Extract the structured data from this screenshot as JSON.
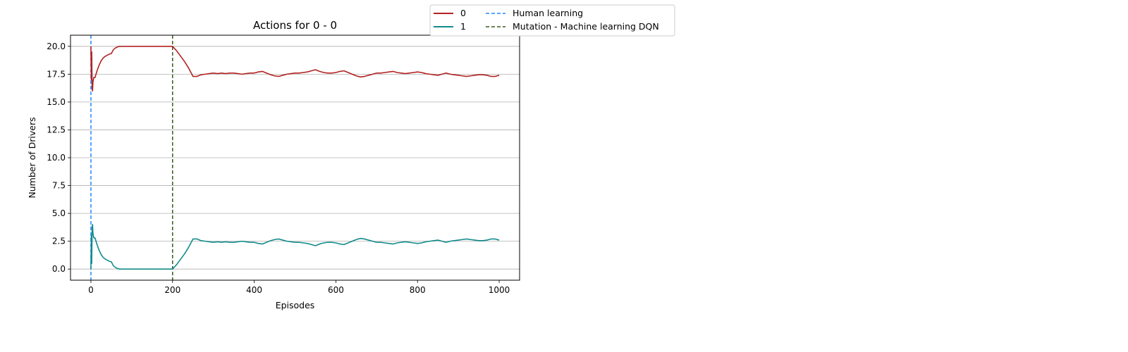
{
  "chart_data": {
    "type": "line",
    "title": "Actions for 0 - 0",
    "xlabel": "Episodes",
    "ylabel": "Number of Drivers",
    "xlim": [
      -50,
      1050
    ],
    "ylim": [
      -1,
      21
    ],
    "xticks": [
      0,
      200,
      400,
      600,
      800,
      1000
    ],
    "xtick_labels": [
      "0",
      "200",
      "400",
      "600",
      "800",
      "1000"
    ],
    "yticks": [
      0.0,
      2.5,
      5.0,
      7.5,
      10.0,
      12.5,
      15.0,
      17.5,
      20.0
    ],
    "ytick_labels": [
      "0.0",
      "2.5",
      "5.0",
      "7.5",
      "10.0",
      "12.5",
      "15.0",
      "17.5",
      "20.0"
    ],
    "grid": "horizontal",
    "legend_position": "top-right, outside plot",
    "series": [
      {
        "name": "0",
        "color": "#b22222",
        "style": "solid",
        "x": [
          0,
          1,
          2,
          3,
          4,
          5,
          7,
          10,
          15,
          20,
          25,
          30,
          35,
          40,
          45,
          50,
          55,
          60,
          65,
          70,
          80,
          100,
          150,
          200,
          210,
          220,
          230,
          240,
          250,
          260,
          270,
          280,
          290,
          300,
          310,
          320,
          330,
          340,
          350,
          360,
          370,
          380,
          390,
          400,
          410,
          420,
          430,
          440,
          450,
          460,
          470,
          480,
          490,
          500,
          510,
          520,
          530,
          540,
          550,
          560,
          570,
          580,
          590,
          600,
          610,
          620,
          630,
          640,
          650,
          660,
          670,
          680,
          690,
          700,
          710,
          720,
          730,
          740,
          750,
          760,
          770,
          780,
          790,
          800,
          810,
          820,
          830,
          840,
          850,
          860,
          870,
          880,
          890,
          900,
          910,
          920,
          930,
          940,
          950,
          960,
          970,
          980,
          990,
          1000
        ],
        "values": [
          20.0,
          17.0,
          19.5,
          16.2,
          16.0,
          16.8,
          17.2,
          17.2,
          17.8,
          18.3,
          18.7,
          18.95,
          19.1,
          19.2,
          19.3,
          19.35,
          19.7,
          19.85,
          19.95,
          20.0,
          20.0,
          20.0,
          20.0,
          20.0,
          19.6,
          19.1,
          18.6,
          18.0,
          17.3,
          17.3,
          17.45,
          17.5,
          17.55,
          17.6,
          17.55,
          17.6,
          17.55,
          17.6,
          17.6,
          17.55,
          17.5,
          17.55,
          17.6,
          17.6,
          17.7,
          17.75,
          17.6,
          17.45,
          17.35,
          17.3,
          17.4,
          17.5,
          17.55,
          17.6,
          17.6,
          17.65,
          17.7,
          17.8,
          17.9,
          17.75,
          17.65,
          17.6,
          17.6,
          17.65,
          17.75,
          17.8,
          17.65,
          17.5,
          17.35,
          17.25,
          17.3,
          17.4,
          17.5,
          17.6,
          17.6,
          17.65,
          17.7,
          17.75,
          17.65,
          17.6,
          17.55,
          17.6,
          17.65,
          17.7,
          17.65,
          17.55,
          17.5,
          17.45,
          17.4,
          17.5,
          17.6,
          17.5,
          17.45,
          17.4,
          17.35,
          17.3,
          17.35,
          17.4,
          17.45,
          17.45,
          17.4,
          17.3,
          17.3,
          17.4
        ]
      },
      {
        "name": "1",
        "color": "#138b8b",
        "style": "solid",
        "x": [
          0,
          1,
          2,
          3,
          4,
          5,
          7,
          10,
          15,
          20,
          25,
          30,
          35,
          40,
          45,
          50,
          55,
          60,
          65,
          70,
          80,
          100,
          150,
          200,
          210,
          220,
          230,
          240,
          250,
          260,
          270,
          280,
          290,
          300,
          310,
          320,
          330,
          340,
          350,
          360,
          370,
          380,
          390,
          400,
          410,
          420,
          430,
          440,
          450,
          460,
          470,
          480,
          490,
          500,
          510,
          520,
          530,
          540,
          550,
          560,
          570,
          580,
          590,
          600,
          610,
          620,
          630,
          640,
          650,
          660,
          670,
          680,
          690,
          700,
          710,
          720,
          730,
          740,
          750,
          760,
          770,
          780,
          790,
          800,
          810,
          820,
          830,
          840,
          850,
          860,
          870,
          880,
          890,
          900,
          910,
          920,
          930,
          940,
          950,
          960,
          970,
          980,
          990,
          1000
        ],
        "values": [
          0.0,
          3.0,
          0.5,
          3.8,
          4.0,
          3.2,
          2.8,
          2.8,
          2.2,
          1.7,
          1.3,
          1.05,
          0.9,
          0.8,
          0.7,
          0.65,
          0.3,
          0.15,
          0.05,
          0.0,
          0.0,
          0.0,
          0.0,
          0.0,
          0.4,
          0.9,
          1.4,
          2.0,
          2.7,
          2.7,
          2.55,
          2.5,
          2.45,
          2.4,
          2.45,
          2.4,
          2.45,
          2.4,
          2.4,
          2.45,
          2.5,
          2.45,
          2.4,
          2.4,
          2.3,
          2.25,
          2.4,
          2.55,
          2.65,
          2.7,
          2.6,
          2.5,
          2.45,
          2.4,
          2.4,
          2.35,
          2.3,
          2.2,
          2.1,
          2.25,
          2.35,
          2.4,
          2.4,
          2.35,
          2.25,
          2.2,
          2.35,
          2.5,
          2.65,
          2.75,
          2.7,
          2.6,
          2.5,
          2.4,
          2.4,
          2.35,
          2.3,
          2.25,
          2.35,
          2.4,
          2.45,
          2.4,
          2.35,
          2.3,
          2.35,
          2.45,
          2.5,
          2.55,
          2.6,
          2.5,
          2.4,
          2.5,
          2.55,
          2.6,
          2.65,
          2.7,
          2.65,
          2.6,
          2.55,
          2.55,
          2.6,
          2.7,
          2.7,
          2.6
        ]
      }
    ],
    "vlines": [
      {
        "name": "Human learning",
        "x": 0,
        "color": "#1e88ff",
        "style": "dashed"
      },
      {
        "name": "Mutation - Machine learning DQN",
        "x": 200,
        "color": "#3a5a1a",
        "style": "dashed"
      }
    ]
  }
}
